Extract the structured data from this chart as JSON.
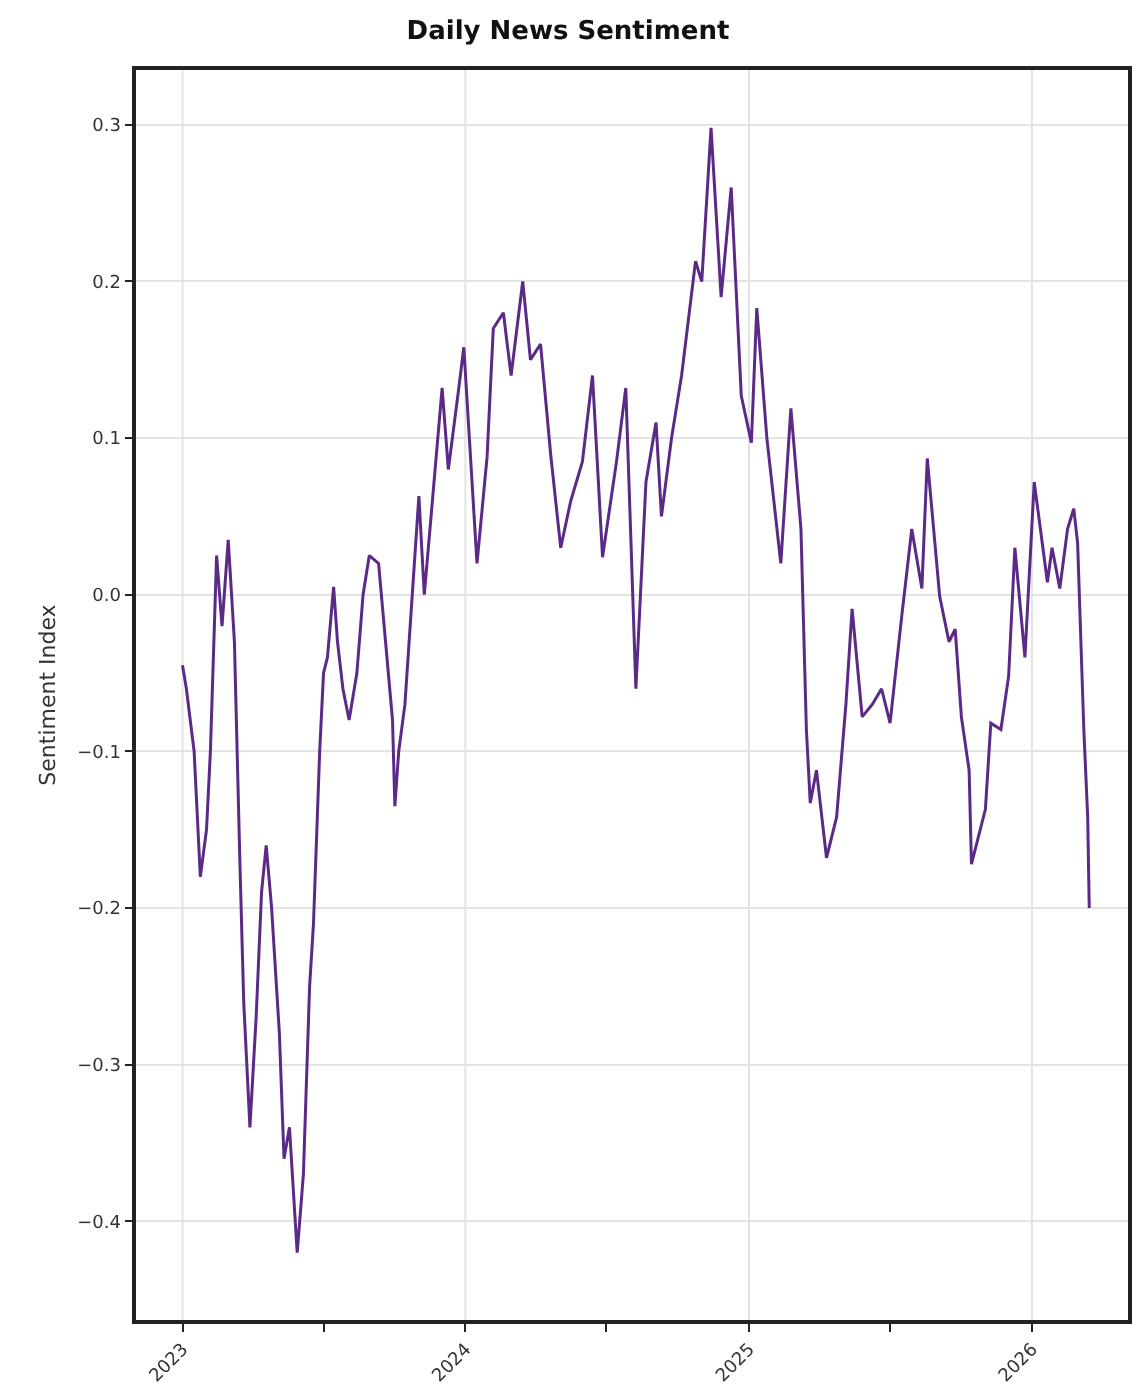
{
  "chart_data": {
    "type": "line",
    "title": "Daily News Sentiment",
    "ylabel": "Sentiment Index",
    "x": [
      "2023-01-01",
      "2023-01-06",
      "2023-01-16",
      "2023-01-24",
      "2023-02-01",
      "2023-02-06",
      "2023-02-14",
      "2023-02-21",
      "2023-03-01",
      "2023-03-09",
      "2023-03-16",
      "2023-03-21",
      "2023-03-29",
      "2023-04-06",
      "2023-04-13",
      "2023-04-19",
      "2023-04-26",
      "2023-05-06",
      "2023-05-12",
      "2023-05-19",
      "2023-05-24",
      "2023-05-29",
      "2023-06-06",
      "2023-06-14",
      "2023-06-19",
      "2023-06-27",
      "2023-07-02",
      "2023-07-07",
      "2023-07-15",
      "2023-07-20",
      "2023-07-27",
      "2023-08-04",
      "2023-08-14",
      "2023-08-22",
      "2023-08-30",
      "2023-09-11",
      "2023-09-29",
      "2023-10-02",
      "2023-10-07",
      "2023-10-15",
      "2023-11-02",
      "2023-11-09",
      "2023-12-02",
      "2023-12-10",
      "2023-12-23",
      "2023-12-30",
      "2024-01-16",
      "2024-01-29",
      "2024-02-06",
      "2024-02-19",
      "2024-02-29",
      "2024-03-15",
      "2024-03-25",
      "2024-04-07",
      "2024-04-20",
      "2024-05-03",
      "2024-05-16",
      "2024-05-31",
      "2024-06-13",
      "2024-06-26",
      "2024-07-14",
      "2024-07-26",
      "2024-08-08",
      "2024-08-21",
      "2024-09-03",
      "2024-09-10",
      "2024-09-23",
      "2024-10-06",
      "2024-10-24",
      "2024-11-01",
      "2024-11-13",
      "2024-11-26",
      "2024-12-09",
      "2024-12-22",
      "2025-01-04",
      "2025-01-11",
      "2025-01-24",
      "2025-02-11",
      "2025-02-24",
      "2025-03-09",
      "2025-03-16",
      "2025-03-21",
      "2025-03-29",
      "2025-04-11",
      "2025-04-24",
      "2025-05-06",
      "2025-05-14",
      "2025-05-27",
      "2025-06-09",
      "2025-06-21",
      "2025-07-02",
      "2025-07-17",
      "2025-07-30",
      "2025-08-12",
      "2025-08-19",
      "2025-09-04",
      "2025-09-16",
      "2025-09-24",
      "2025-10-02",
      "2025-10-12",
      "2025-10-15",
      "2025-11-02",
      "2025-11-09",
      "2025-11-22",
      "2025-12-02",
      "2025-12-10",
      "2025-12-23",
      "2026-01-04",
      "2026-01-21",
      "2026-01-27",
      "2026-02-06",
      "2026-02-16",
      "2026-02-24",
      "2026-03-01",
      "2026-03-09",
      "2026-03-14",
      "2026-03-16"
    ],
    "series": [
      {
        "color": "#5b2a86",
        "values": [
          -0.045,
          -0.06,
          -0.1,
          -0.18,
          -0.15,
          -0.1,
          0.025,
          -0.02,
          0.035,
          -0.03,
          -0.17,
          -0.26,
          -0.34,
          -0.27,
          -0.19,
          -0.16,
          -0.2,
          -0.28,
          -0.36,
          -0.34,
          -0.38,
          -0.42,
          -0.37,
          -0.25,
          -0.21,
          -0.1,
          -0.05,
          -0.04,
          0.005,
          -0.03,
          -0.06,
          -0.08,
          -0.05,
          0.0,
          0.025,
          0.02,
          -0.08,
          -0.135,
          -0.1,
          -0.07,
          0.063,
          0.0,
          0.132,
          0.08,
          0.13,
          0.158,
          0.02,
          0.088,
          0.17,
          0.18,
          0.14,
          0.2,
          0.15,
          0.16,
          0.09,
          0.03,
          0.06,
          0.085,
          0.14,
          0.024,
          0.085,
          0.132,
          -0.06,
          0.072,
          0.11,
          0.05,
          0.1,
          0.14,
          0.213,
          0.2,
          0.298,
          0.19,
          0.26,
          0.127,
          0.097,
          0.183,
          0.1,
          0.02,
          0.119,
          0.042,
          -0.086,
          -0.133,
          -0.112,
          -0.168,
          -0.142,
          -0.07,
          -0.009,
          -0.078,
          -0.07,
          -0.06,
          -0.082,
          -0.014,
          0.042,
          0.004,
          0.087,
          -0.001,
          -0.03,
          -0.022,
          -0.078,
          -0.112,
          -0.172,
          -0.137,
          -0.082,
          -0.086,
          -0.052,
          0.03,
          -0.04,
          0.072,
          0.008,
          0.03,
          0.004,
          0.042,
          0.055,
          0.033,
          -0.086,
          -0.142,
          -0.2
        ]
      }
    ],
    "xlim": [
      "2022-11-02",
      "2026-05-05"
    ],
    "xticks": [
      {
        "value": "2023-01-01",
        "label": "2023"
      },
      {
        "value": "2023-07-02",
        "label": null
      },
      {
        "value": "2024-01-01",
        "label": "2024"
      },
      {
        "value": "2024-07-01",
        "label": null
      },
      {
        "value": "2025-01-01",
        "label": "2025"
      },
      {
        "value": "2025-07-02",
        "label": null
      },
      {
        "value": "2026-01-01",
        "label": "2026"
      }
    ],
    "ylim": [
      -0.463,
      0.335
    ],
    "yticks": [
      -0.4,
      -0.3,
      -0.2,
      -0.1,
      {
        "value": 0,
        "label": "0.0"
      },
      0.1,
      0.2,
      0.3
    ],
    "grid": true,
    "marker": "none",
    "line_style": "solid"
  }
}
